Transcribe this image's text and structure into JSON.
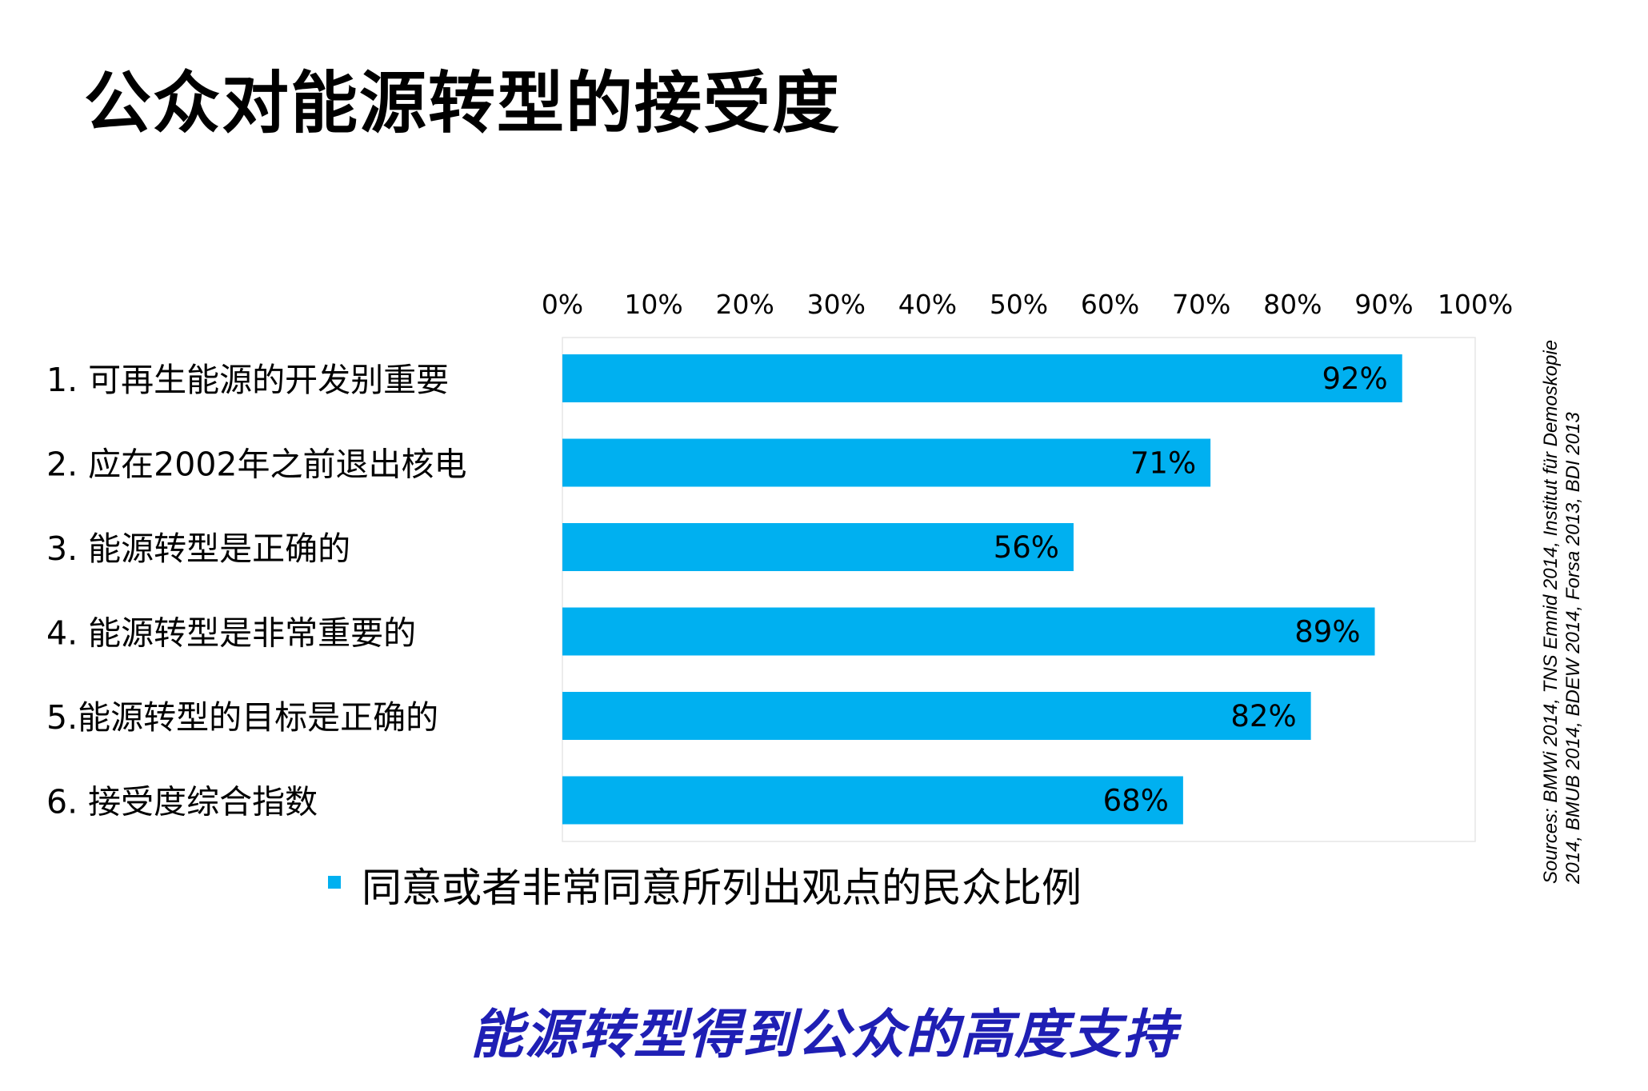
{
  "title": "公众对能源转型的接受度",
  "tagline": "能源转型得到公众的高度支持",
  "source": "Sources: BMWi 2014, TNS Emnid 2014, Institut für Demoskopie 2014, BMUB 2014, BDEW 2014, Forsa 2013, BDI 2013",
  "colors": {
    "bar": "#00b0f0",
    "tagline": "#1f1fb4"
  },
  "chart_data": {
    "type": "bar",
    "orientation": "horizontal",
    "categories": [
      "1. 可再生能源的开发别重要",
      "2. 应在2002年之前退出核电",
      "3. 能源转型是正确的",
      "4. 能源转型是非常重要的",
      "5.能源转型的目标是正确的",
      "6. 接受度综合指数"
    ],
    "series": [
      {
        "name": "同意或者非常同意所列出观点的民众比例",
        "values": [
          92,
          71,
          56,
          89,
          82,
          68
        ],
        "labels": [
          "92%",
          "71%",
          "56%",
          "89%",
          "82%",
          "68%"
        ]
      }
    ],
    "x_ticks": [
      "0%",
      "10%",
      "20%",
      "30%",
      "40%",
      "50%",
      "60%",
      "70%",
      "80%",
      "90%",
      "100%"
    ],
    "xlim": [
      0,
      100
    ],
    "axis_position": "top",
    "grid": false,
    "legend_position": "bottom"
  }
}
